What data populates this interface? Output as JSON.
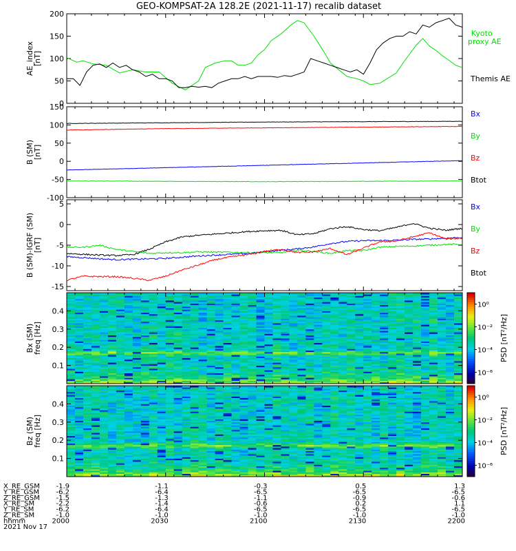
{
  "title": "GEO-KOMPSAT-2A 128.2E (2021-11-17) recalib dataset",
  "chart_data": [
    {
      "id": "ae",
      "type": "line",
      "ylabel": "AE_index",
      "yunit": "[nT]",
      "ylim": [
        0,
        200
      ],
      "yticks": [
        0,
        50,
        100,
        150,
        200
      ],
      "x_range": [
        0,
        120
      ],
      "series": [
        {
          "name": "Kyoto proxy AE",
          "color": "#00e000",
          "x": [
            0,
            3,
            5,
            8,
            12,
            16,
            20,
            24,
            28,
            32,
            36,
            40,
            42,
            45,
            48,
            50,
            52,
            54,
            56,
            58,
            60,
            62,
            65,
            68,
            70,
            72,
            75,
            78,
            80,
            82,
            85,
            88,
            90,
            92,
            95,
            100,
            102,
            104,
            106,
            108,
            110,
            112,
            114,
            116,
            118,
            120
          ],
          "y": [
            102,
            92,
            95,
            88,
            85,
            68,
            75,
            70,
            70,
            45,
            30,
            50,
            80,
            90,
            95,
            95,
            85,
            85,
            90,
            108,
            120,
            140,
            155,
            175,
            185,
            180,
            150,
            115,
            90,
            78,
            60,
            55,
            50,
            42,
            45,
            68,
            90,
            110,
            130,
            145,
            128,
            118,
            106,
            96,
            85,
            80
          ]
        },
        {
          "name": "Themis AE",
          "color": "#000000",
          "x": [
            0,
            2,
            4,
            6,
            8,
            10,
            12,
            14,
            16,
            18,
            20,
            22,
            24,
            26,
            28,
            30,
            32,
            34,
            36,
            38,
            40,
            42,
            44,
            46,
            48,
            50,
            52,
            54,
            56,
            58,
            60,
            62,
            64,
            66,
            68,
            70,
            72,
            74,
            76,
            78,
            80,
            82,
            84,
            86,
            88,
            90,
            92,
            94,
            96,
            98,
            100,
            102,
            104,
            106,
            108,
            110,
            112,
            114,
            116,
            118,
            120
          ],
          "y": [
            55,
            55,
            40,
            70,
            85,
            88,
            80,
            90,
            80,
            85,
            75,
            70,
            60,
            65,
            55,
            55,
            50,
            35,
            35,
            38,
            36,
            38,
            35,
            45,
            50,
            55,
            55,
            60,
            55,
            60,
            60,
            60,
            58,
            62,
            60,
            65,
            70,
            100,
            95,
            90,
            85,
            80,
            75,
            70,
            75,
            65,
            90,
            120,
            135,
            145,
            150,
            150,
            160,
            155,
            175,
            170,
            180,
            185,
            190,
            175,
            170
          ]
        }
      ],
      "legend": [
        {
          "label": "Kyoto proxy AE",
          "color": "#00e000"
        },
        {
          "label": "Themis AE",
          "color": "#000000"
        }
      ]
    },
    {
      "id": "bsm",
      "type": "line",
      "ylabel": "B (SM)",
      "yunit": "[nT]",
      "ylim": [
        -100,
        150
      ],
      "yticks": [
        -100,
        -50,
        0,
        50,
        100,
        150
      ],
      "x_range": [
        0,
        120
      ],
      "series": [
        {
          "name": "Bx",
          "color": "#0000ff",
          "x": [
            0,
            120
          ],
          "y": [
            -24,
            2
          ]
        },
        {
          "name": "By",
          "color": "#00e000",
          "x": [
            0,
            30,
            60,
            90,
            120
          ],
          "y": [
            -54,
            -55,
            -56,
            -55,
            -54
          ]
        },
        {
          "name": "Bz",
          "color": "#ff0000",
          "x": [
            0,
            30,
            60,
            90,
            120
          ],
          "y": [
            86,
            90,
            92,
            94,
            96
          ]
        },
        {
          "name": "Btot",
          "color": "#000000",
          "x": [
            0,
            30,
            60,
            90,
            120
          ],
          "y": [
            104,
            106,
            108,
            109,
            110
          ]
        }
      ],
      "legend": [
        {
          "label": "Bx",
          "color": "#0000ff"
        },
        {
          "label": "By",
          "color": "#00e000"
        },
        {
          "label": "Bz",
          "color": "#ff0000"
        },
        {
          "label": "Btot",
          "color": "#000000"
        }
      ]
    },
    {
      "id": "bigrf",
      "type": "line",
      "ylabel": "B (SM)-IGRF (SM)",
      "yunit": "[nT]",
      "ylim": [
        -16,
        6
      ],
      "yticks": [
        -15,
        -10,
        -5,
        0,
        5
      ],
      "x_range": [
        0,
        120
      ],
      "series": [
        {
          "name": "Bx",
          "color": "#0000ff",
          "x": [
            0,
            5,
            10,
            15,
            20,
            25,
            30,
            35,
            40,
            45,
            50,
            55,
            60,
            65,
            70,
            75,
            80,
            85,
            90,
            95,
            100,
            105,
            110,
            115,
            120
          ],
          "y": [
            -7.8,
            -8.0,
            -8.3,
            -8.5,
            -8.4,
            -8.3,
            -8.2,
            -7.9,
            -7.6,
            -7.4,
            -7.2,
            -7.0,
            -6.6,
            -6.2,
            -5.9,
            -5.4,
            -4.6,
            -4.1,
            -3.9,
            -3.9,
            -3.8,
            -3.6,
            -3.5,
            -3.3,
            -3.1
          ]
        },
        {
          "name": "By",
          "color": "#00e000",
          "x": [
            0,
            5,
            10,
            15,
            20,
            25,
            30,
            35,
            40,
            45,
            50,
            55,
            60,
            65,
            70,
            75,
            80,
            85,
            90,
            95,
            100,
            105,
            110,
            115,
            120
          ],
          "y": [
            -5.5,
            -5.5,
            -5.0,
            -6.0,
            -6.5,
            -7.0,
            -6.8,
            -6.8,
            -6.6,
            -6.7,
            -6.7,
            -6.8,
            -6.8,
            -6.8,
            -6.2,
            -6.5,
            -7.0,
            -6.3,
            -6.3,
            -5.5,
            -5.3,
            -5.2,
            -5.0,
            -4.8,
            -4.8
          ]
        },
        {
          "name": "Bz",
          "color": "#ff0000",
          "x": [
            0,
            5,
            10,
            15,
            20,
            25,
            30,
            35,
            40,
            45,
            50,
            55,
            60,
            65,
            70,
            75,
            80,
            85,
            90,
            95,
            100,
            105,
            110,
            115,
            120
          ],
          "y": [
            -13.5,
            -12.5,
            -12.6,
            -12.6,
            -13.0,
            -13.5,
            -12.5,
            -11.0,
            -9.8,
            -8.5,
            -7.8,
            -7.3,
            -6.5,
            -6.0,
            -6.8,
            -6.6,
            -5.8,
            -7.3,
            -5.7,
            -4.2,
            -4.0,
            -3.0,
            -2.0,
            -3.5,
            -3.3
          ]
        },
        {
          "name": "Btot",
          "color": "#000000",
          "x": [
            0,
            5,
            10,
            15,
            20,
            25,
            30,
            35,
            40,
            45,
            50,
            55,
            60,
            65,
            70,
            75,
            80,
            85,
            90,
            95,
            100,
            105,
            110,
            115,
            120
          ],
          "y": [
            -7.0,
            -7.2,
            -7.4,
            -7.5,
            -7.3,
            -6.0,
            -4.2,
            -3.0,
            -2.6,
            -2.3,
            -2.0,
            -1.7,
            -1.5,
            -1.4,
            -2.5,
            -2.2,
            -1.0,
            -0.5,
            -1.2,
            -1.5,
            -0.7,
            0.3,
            -0.9,
            -1.4,
            -0.9
          ]
        }
      ],
      "legend": [
        {
          "label": "Bx",
          "color": "#0000ff"
        },
        {
          "label": "By",
          "color": "#00e000"
        },
        {
          "label": "Bz",
          "color": "#ff0000"
        },
        {
          "label": "Btot",
          "color": "#000000"
        }
      ]
    },
    {
      "id": "bxspec",
      "type": "heatmap",
      "ylabel": "Bx (SM)",
      "ylabel2": "freq [Hz]",
      "ylim": [
        0,
        0.5
      ],
      "yticks": [
        0.1,
        0.2,
        0.3,
        0.4
      ],
      "colorbar": {
        "label": "PSD [nT²/Hz]",
        "ticks": [
          "10⁰",
          "10⁻²",
          "10⁻⁴",
          "10⁻⁶"
        ],
        "tick_exponents": [
          0,
          -2,
          -4,
          -6
        ],
        "range_log10": [
          -7,
          1
        ]
      }
    },
    {
      "id": "bzspec",
      "type": "heatmap",
      "ylabel": "Bz (SM)",
      "ylabel2": "freq [Hz]",
      "ylim": [
        0,
        0.5
      ],
      "yticks": [
        0.1,
        0.2,
        0.3,
        0.4
      ],
      "colorbar": {
        "label": "PSD [nT²/Hz]",
        "ticks": [
          "10⁰",
          "10⁻²",
          "10⁻⁴",
          "10⁻⁶"
        ],
        "tick_exponents": [
          0,
          -2,
          -4,
          -6
        ],
        "range_log10": [
          -7,
          1
        ]
      }
    }
  ],
  "ephemeris": {
    "labels": [
      "X_RE_GSM",
      "Y_RE_GSM",
      "Z_RE_GSM",
      "X_RE_SM",
      "Y_RE_SM",
      "Z_RE_SM",
      "hhmm"
    ],
    "columns": [
      [
        "-1.9",
        "-6.2",
        "-1.5",
        "-2.2",
        "-6.2",
        "-1.0",
        "2000"
      ],
      [
        "-1.1",
        "-6.4",
        "-1.3",
        "-1.4",
        "-6.4",
        "-1.0",
        "2030"
      ],
      [
        "-0.3",
        "-6.5",
        "-1.1",
        "-0.6",
        "-6.5",
        "-1.0",
        "2100"
      ],
      [
        "0.5",
        "-6.5",
        "-0.9",
        "0.2",
        "-6.5",
        "-1.0",
        "2130"
      ],
      [
        "1.3",
        "-6.5",
        "-0.6",
        "1.1",
        "-6.5",
        "-1.0",
        "2200"
      ]
    ],
    "date": "2021 Nov 17"
  }
}
